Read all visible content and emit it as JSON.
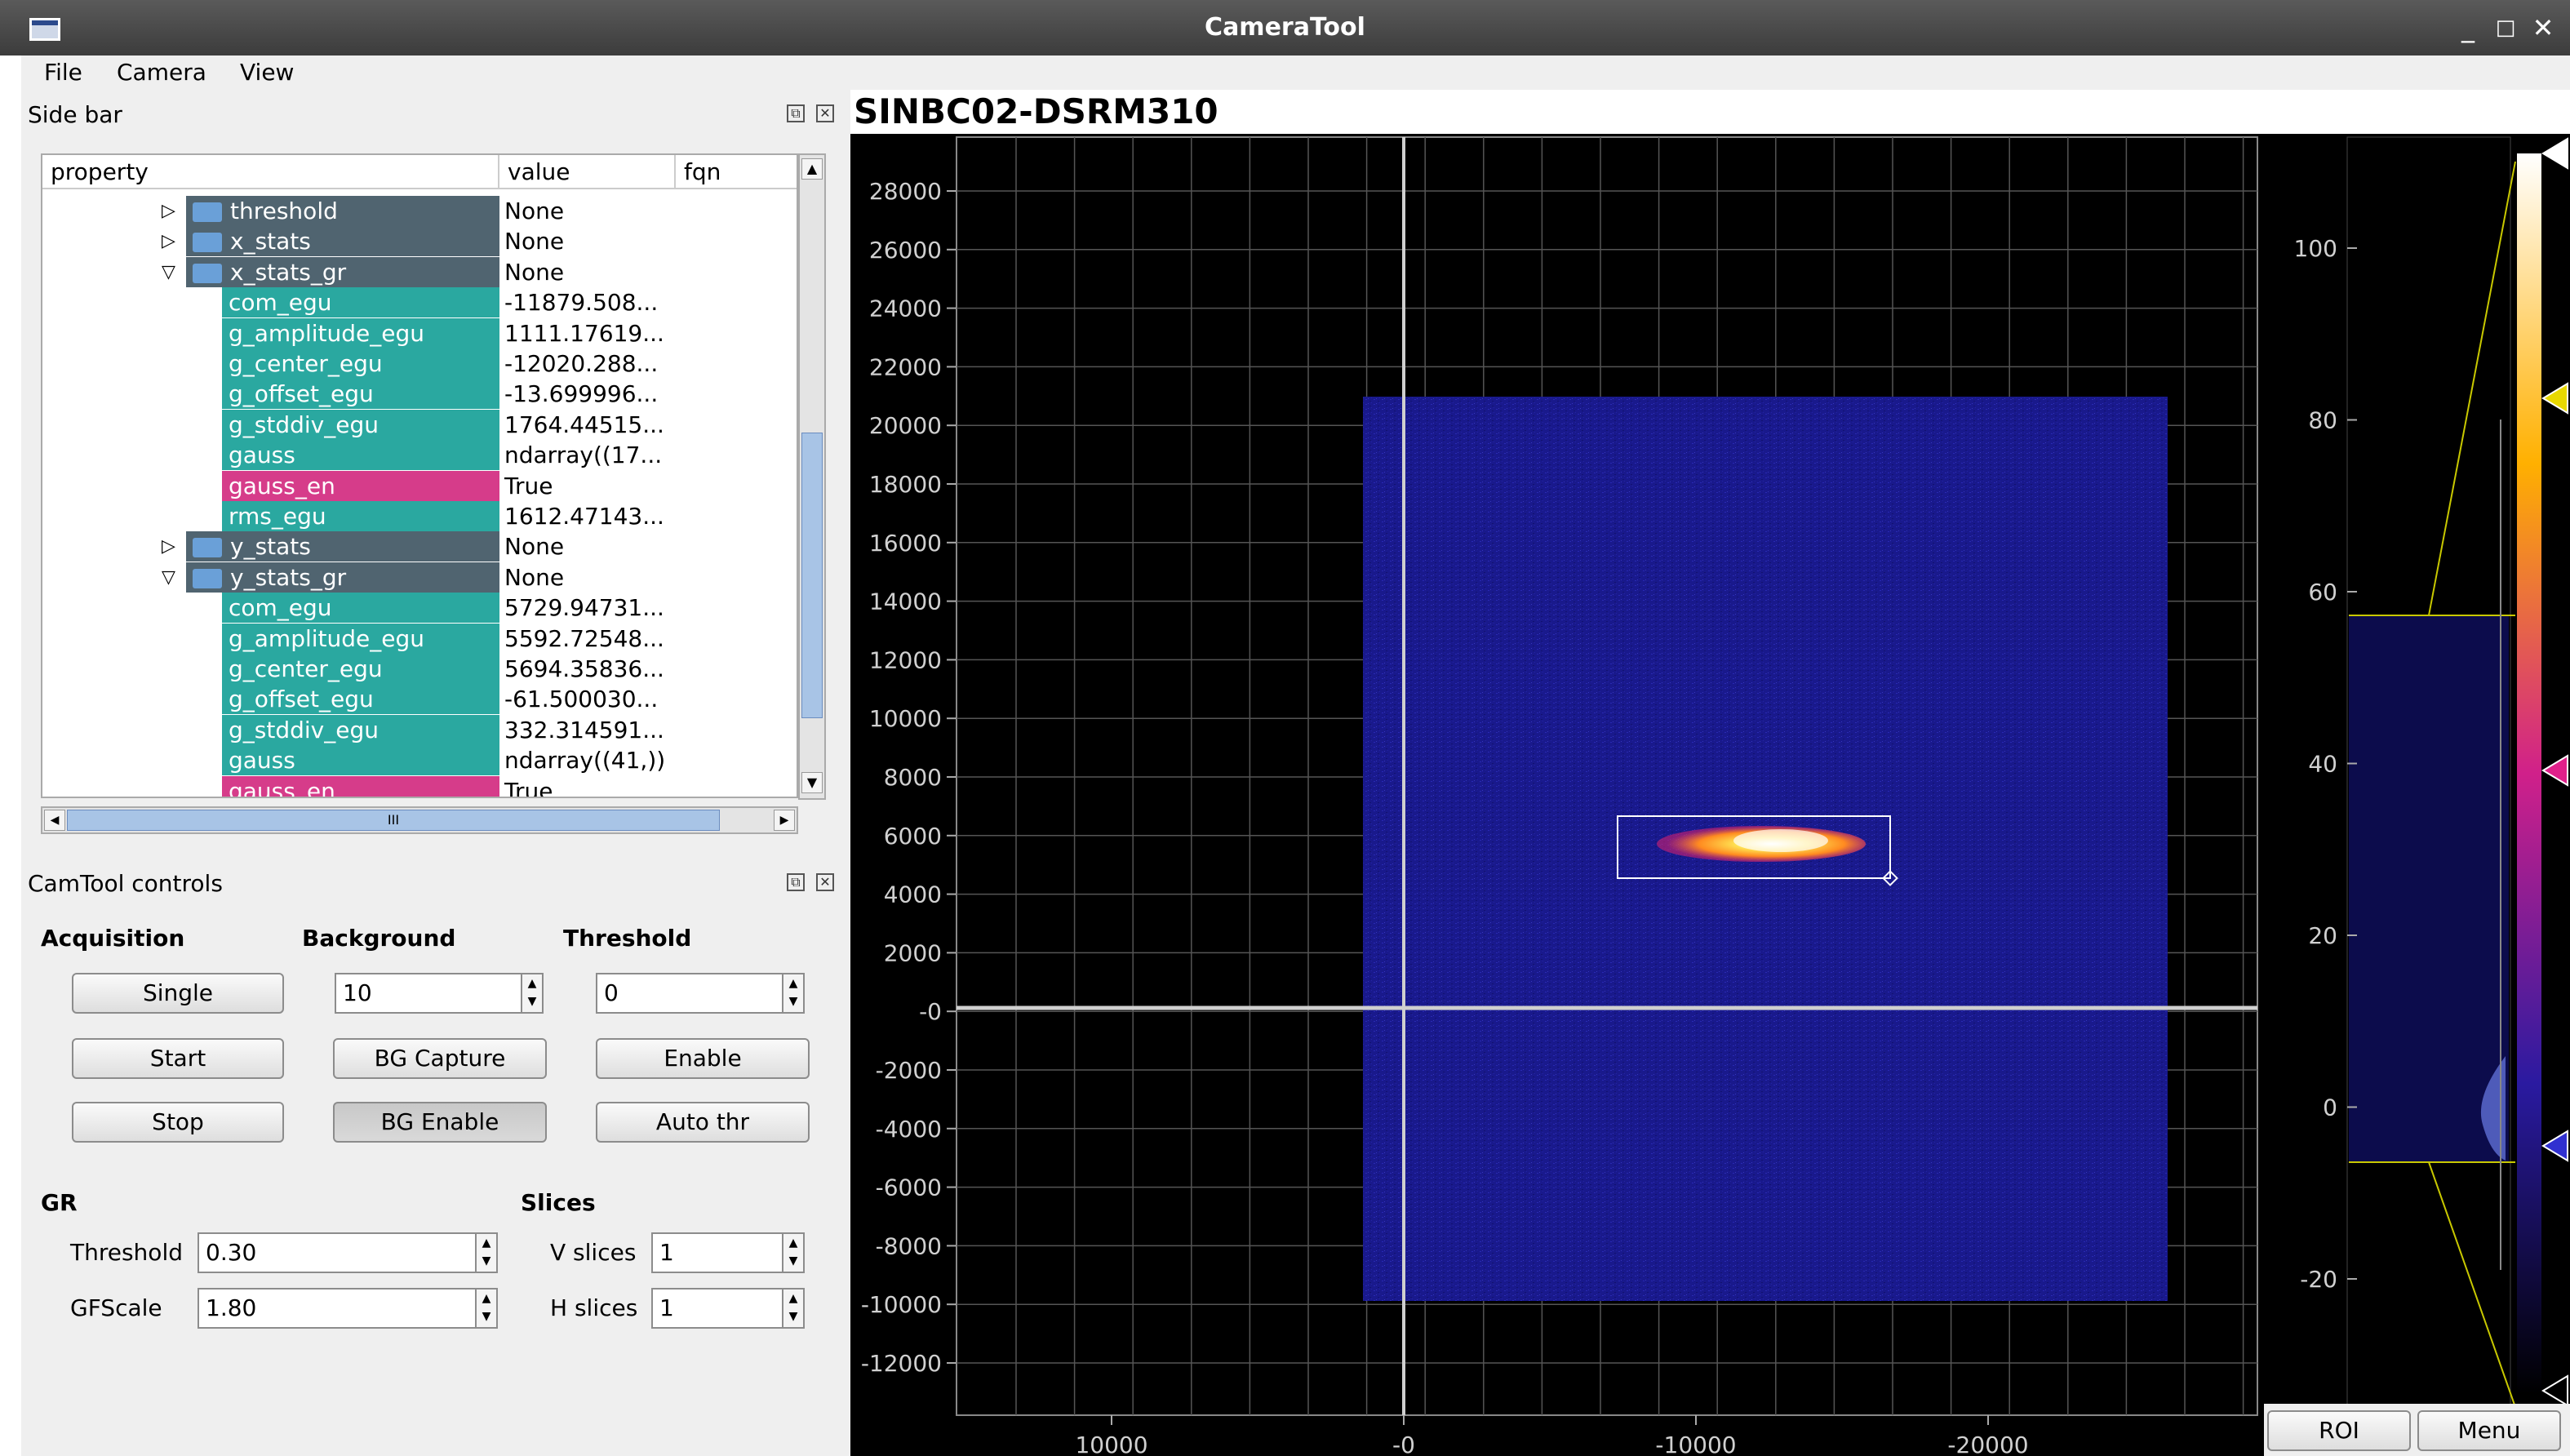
{
  "window": {
    "title": "CameraTool",
    "controls": [
      "_",
      "□",
      "✕"
    ]
  },
  "menu": [
    "File",
    "Camera",
    "View"
  ],
  "sidebar": {
    "title": "Side bar",
    "columns": [
      "property",
      "value",
      "fqn"
    ],
    "rows": [
      {
        "name": "threshold",
        "value": "None",
        "type": "folder",
        "expand": "▷"
      },
      {
        "name": "x_stats",
        "value": "None",
        "type": "folder",
        "expand": "▷"
      },
      {
        "name": "x_stats_gr",
        "value": "None",
        "type": "folder",
        "expand": "▽"
      },
      {
        "name": "com_egu",
        "value": "-11879.508...",
        "type": "leaf"
      },
      {
        "name": "g_amplitude_egu",
        "value": "1111.17619...",
        "type": "leaf"
      },
      {
        "name": "g_center_egu",
        "value": "-12020.288...",
        "type": "leaf"
      },
      {
        "name": "g_offset_egu",
        "value": "-13.699996...",
        "type": "leaf"
      },
      {
        "name": "g_stddiv_egu",
        "value": "1764.44515...",
        "type": "leaf"
      },
      {
        "name": "gauss",
        "value": "ndarray((17...",
        "type": "leaf"
      },
      {
        "name": "gauss_en",
        "value": "True",
        "type": "bool"
      },
      {
        "name": "rms_egu",
        "value": "1612.47143...",
        "type": "leaf"
      },
      {
        "name": "y_stats",
        "value": "None",
        "type": "folder",
        "expand": "▷"
      },
      {
        "name": "y_stats_gr",
        "value": "None",
        "type": "folder",
        "expand": "▽"
      },
      {
        "name": "com_egu",
        "value": "5729.94731...",
        "type": "leaf"
      },
      {
        "name": "g_amplitude_egu",
        "value": "5592.72548...",
        "type": "leaf"
      },
      {
        "name": "g_center_egu",
        "value": "5694.35836...",
        "type": "leaf"
      },
      {
        "name": "g_offset_egu",
        "value": "-61.500030...",
        "type": "leaf"
      },
      {
        "name": "g_stddiv_egu",
        "value": "332.314591...",
        "type": "leaf"
      },
      {
        "name": "gauss",
        "value": "ndarray((41,))",
        "type": "leaf"
      },
      {
        "name": "gauss_en",
        "value": "True",
        "type": "bool"
      }
    ],
    "hscroll_grip": "III"
  },
  "controls": {
    "title": "CamTool controls",
    "acquisition": {
      "heading": "Acquisition",
      "single": "Single",
      "start": "Start",
      "stop": "Stop"
    },
    "background": {
      "heading": "Background",
      "value": "10",
      "capture": "BG Capture",
      "enable": "BG Enable"
    },
    "threshold": {
      "heading": "Threshold",
      "value": "0",
      "enable": "Enable",
      "auto": "Auto thr"
    },
    "gr": {
      "heading": "GR",
      "threshold_label": "Threshold",
      "threshold_value": "0.30",
      "gfscale_label": "GFScale",
      "gfscale_value": "1.80"
    },
    "slices": {
      "heading": "Slices",
      "v_label": "V slices",
      "v_value": "1",
      "h_label": "H slices",
      "h_value": "1"
    }
  },
  "plot": {
    "title": "SINBC02-DSRM310",
    "y_ticks": [
      "28000",
      "26000",
      "24000",
      "22000",
      "20000",
      "18000",
      "16000",
      "14000",
      "12000",
      "10000",
      "8000",
      "6000",
      "4000",
      "2000",
      "-0",
      "-2000",
      "-4000",
      "-6000",
      "-8000",
      "-10000",
      "-12000"
    ],
    "x_ticks": [
      "10000",
      "-0",
      "-10000",
      "-20000"
    ],
    "colorbar_ticks": [
      "100",
      "80",
      "60",
      "40",
      "20",
      "0",
      "-20"
    ],
    "roi_button": "ROI",
    "menu_button": "Menu",
    "colors": {
      "image_bg": "#1a1a8c",
      "crosshair": "#cfcfcf",
      "beam": "#ffd23c"
    }
  }
}
